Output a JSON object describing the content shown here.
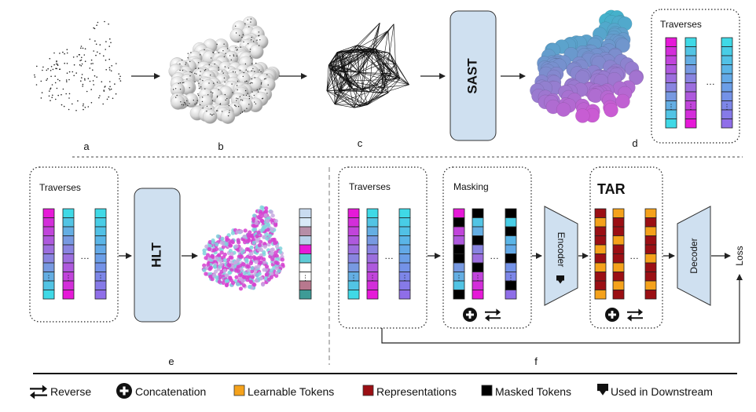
{
  "panels": {
    "a": {
      "letter": "a"
    },
    "b": {
      "letter": "b"
    },
    "c": {
      "letter": "c"
    },
    "d": {
      "letter": "d"
    },
    "e": {
      "letter": "e"
    },
    "f": {
      "letter": "f"
    }
  },
  "blocks": {
    "sast": "SAST",
    "hlt": "HLT",
    "encoder": "Encoder",
    "decoder": "Decoder",
    "loss": "Loss",
    "tar": "TAR"
  },
  "boxes": {
    "traverses_top": "Traverses",
    "traverses_e": "Traverses",
    "traverses_f": "Traverses",
    "masking": "Masking"
  },
  "legend": {
    "reverse": "Reverse",
    "concatenation": "Concatenation",
    "learnable": "Learnable Tokens",
    "representations": "Representations",
    "masked": "Masked Tokens",
    "downstream": "Used in Downstream"
  },
  "colors": {
    "block_fill": "#cfe0f0",
    "magenta": "#e619d8",
    "cyan": "#3fd9e6",
    "purple": "#8f6ee8",
    "learnable": "#f5a21b",
    "representation": "#9b0f14",
    "masked": "#000000"
  },
  "icons": [
    "reverse-icon",
    "concatenation-icon",
    "downstream-icon"
  ]
}
